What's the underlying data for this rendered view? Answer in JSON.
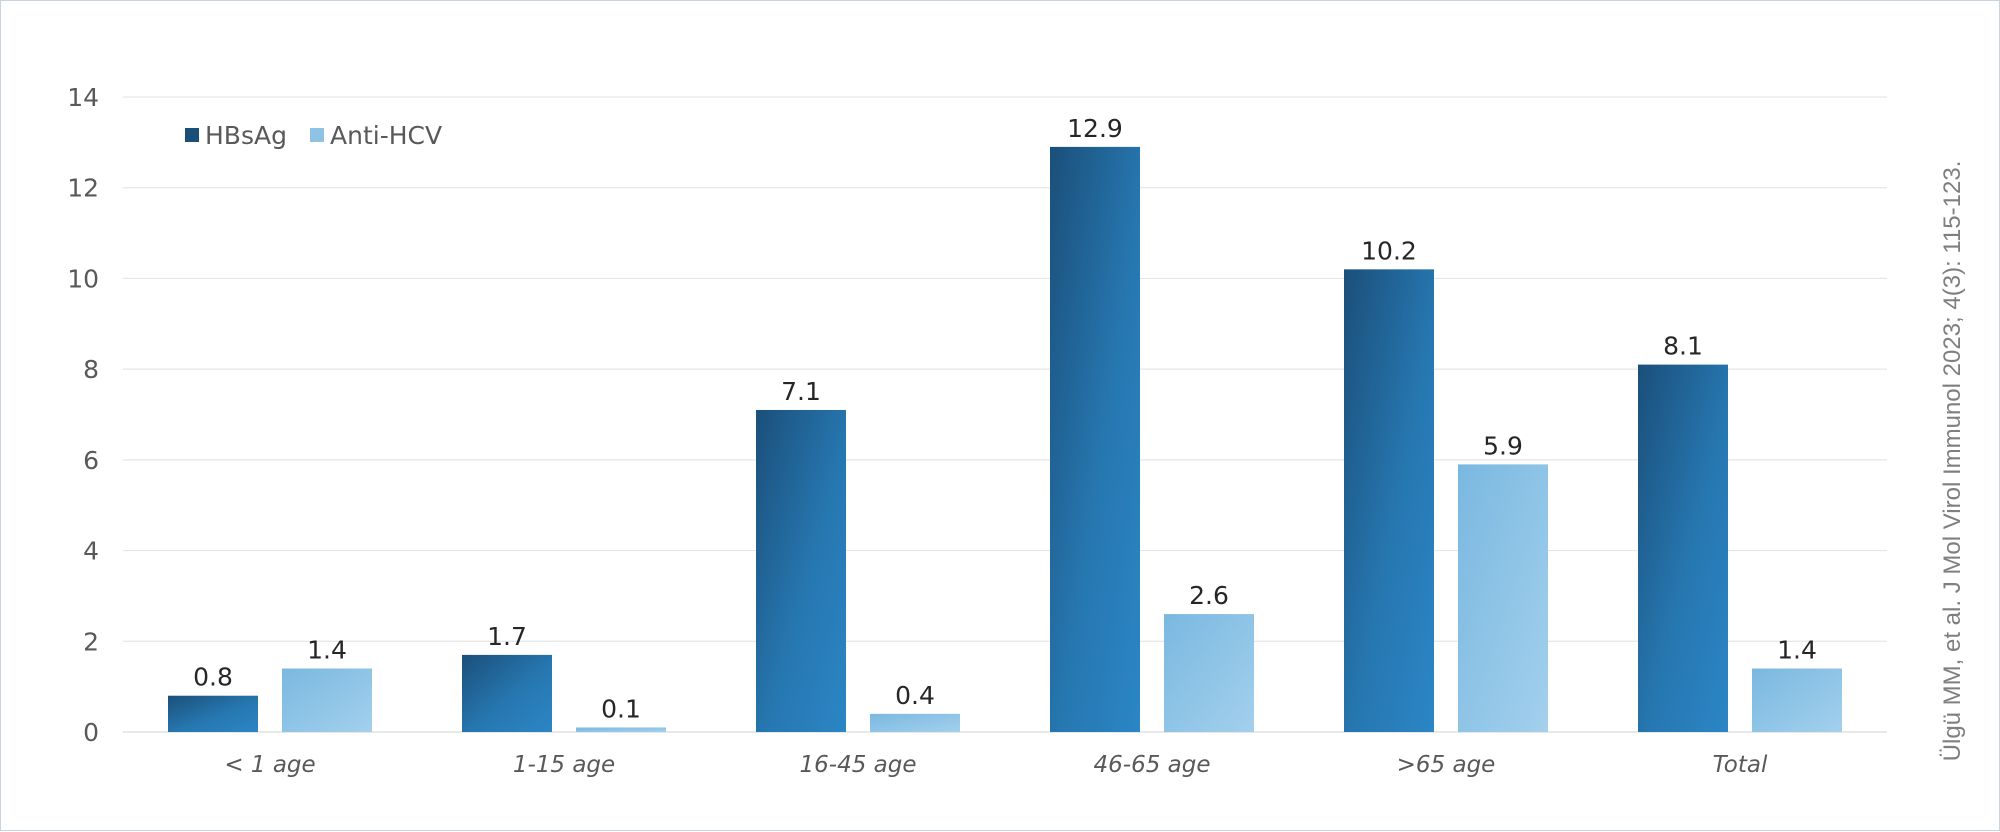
{
  "chart_data": {
    "type": "bar",
    "categories": [
      "< 1 age",
      "1-15 age",
      "16-45 age",
      "46-65 age",
      ">65 age",
      "Total"
    ],
    "series": [
      {
        "name": "HBsAg",
        "values": [
          0.8,
          1.7,
          7.1,
          12.9,
          10.2,
          8.1
        ],
        "color": "#2a7ab5",
        "color_dark": "#1b4f7a"
      },
      {
        "name": "Anti-HCV",
        "values": [
          1.4,
          0.1,
          0.4,
          2.6,
          5.9,
          1.4
        ],
        "color": "#8ec3e6",
        "color_dark": "#74b2dc"
      }
    ],
    "ylim": [
      0,
      14
    ],
    "yticks": [
      0,
      2,
      4,
      6,
      8,
      10,
      12,
      14
    ],
    "grid": true,
    "legend_position": "top-left",
    "data_labels": true
  },
  "citation": "Ülgü MM, et al. J Mol Virol Immunol 2023; 4(3): 115-123."
}
